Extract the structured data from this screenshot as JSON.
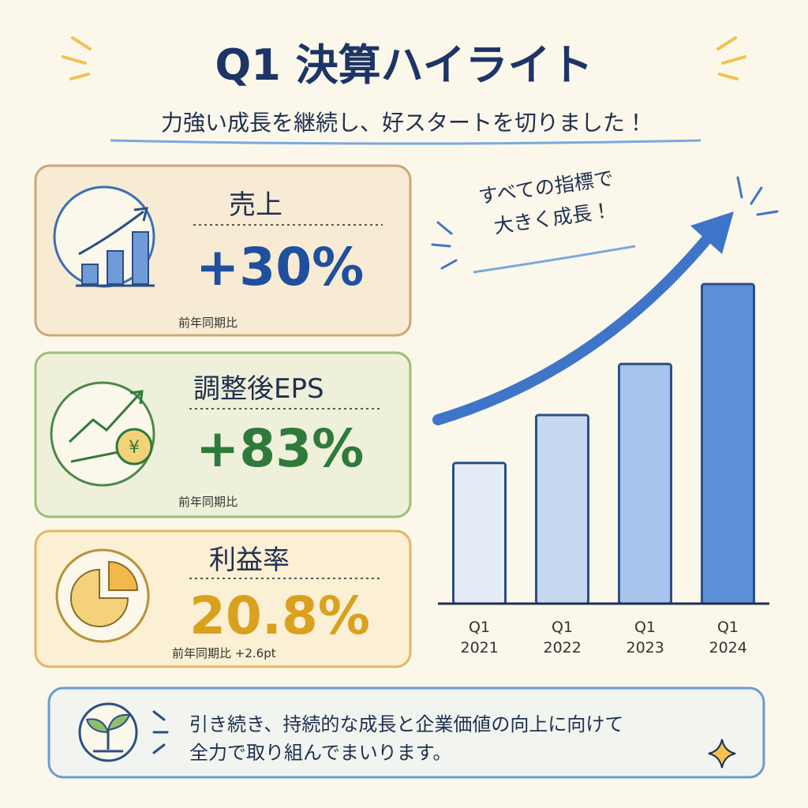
{
  "title": "Q1 決算ハイライト",
  "subtitle": "力強い成長を継続し、好スタートを切りました！",
  "kpis": [
    {
      "label": "売上",
      "value": "+30%",
      "note": "前年同期比"
    },
    {
      "label": "調整後EPS",
      "value": "+83%",
      "note": "前年同期比"
    },
    {
      "label": "利益率",
      "value": "20.8%",
      "note": "前年同期比 +2.6pt"
    }
  ],
  "chart_data": {
    "type": "bar",
    "annotation": [
      "すべての指標で",
      "大きく成長！"
    ],
    "categories": [
      "Q1 2021",
      "Q1 2022",
      "Q1 2023",
      "Q1 2024"
    ],
    "values": [
      44,
      59,
      75,
      100
    ],
    "colors": [
      "#e4ecf7",
      "#c6d9f1",
      "#a5c3eb",
      "#5b8fd8"
    ]
  },
  "footer": [
    "引き続き、持続的な成長と企業価値の向上に向けて",
    "全力で取り組んでまいります。"
  ]
}
